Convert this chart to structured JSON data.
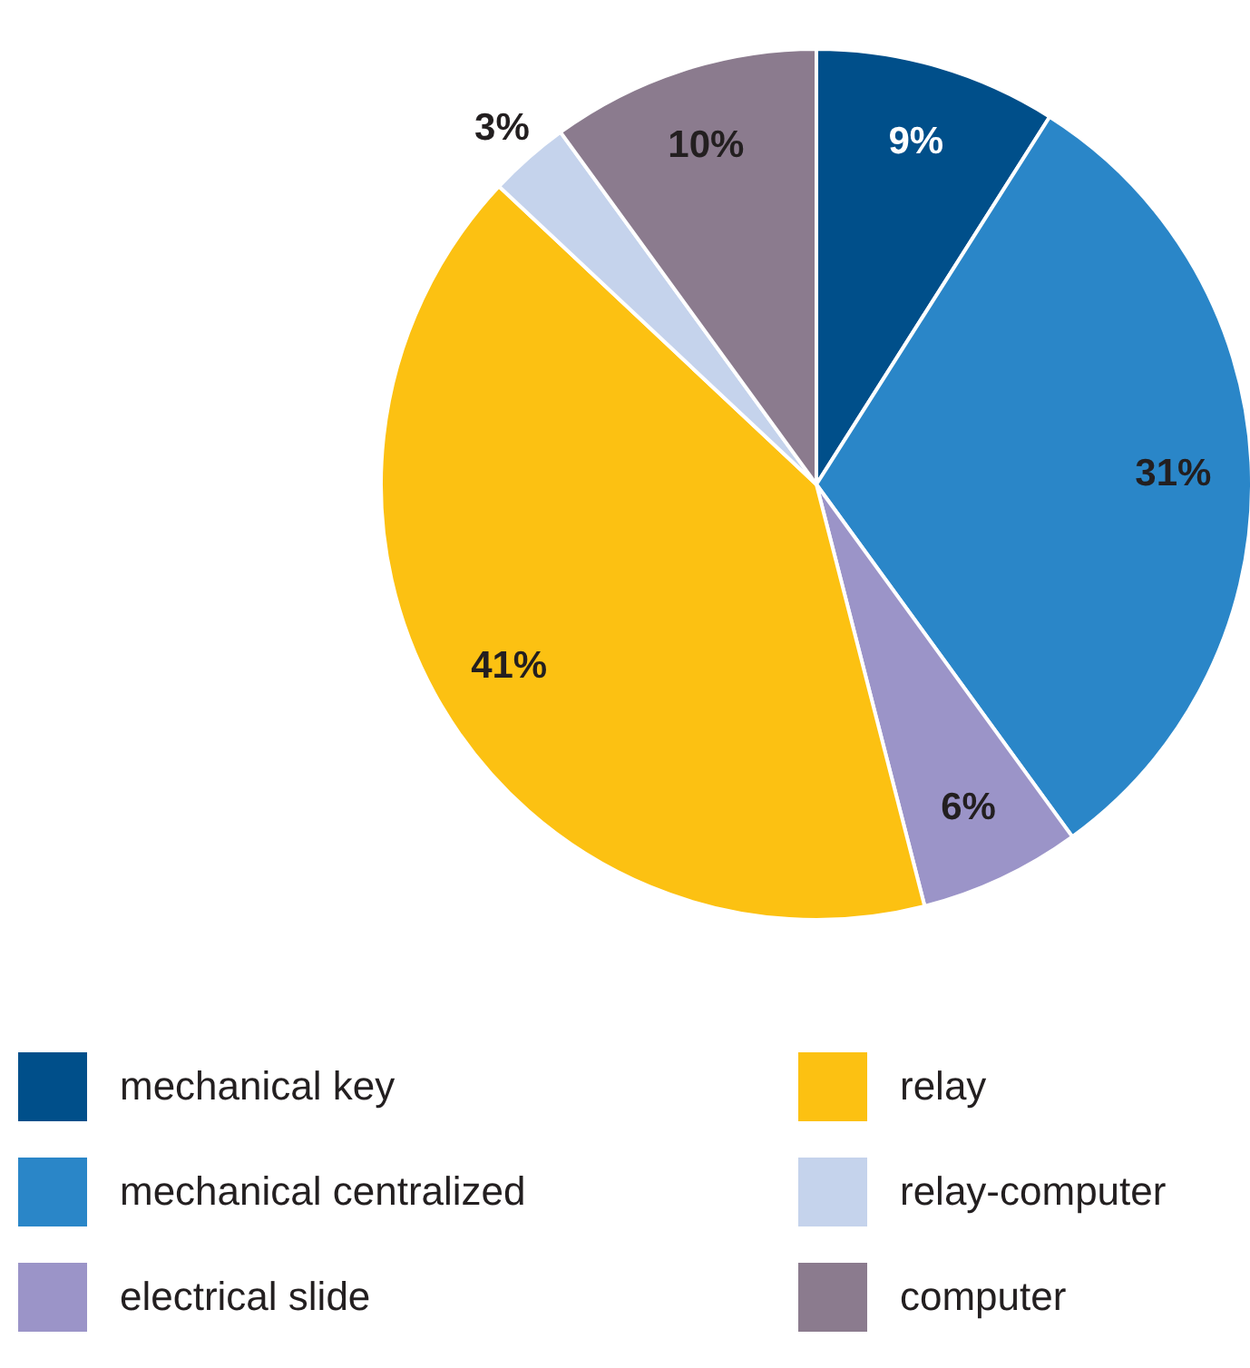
{
  "chart_data": {
    "type": "pie",
    "categories": [
      "mechanical key",
      "mechanical centralized",
      "electrical slide",
      "relay",
      "relay-computer",
      "computer"
    ],
    "values": [
      9,
      31,
      6,
      41,
      3,
      10
    ],
    "colors": [
      "#004f8a",
      "#2a86c8",
      "#9b94c8",
      "#fcc112",
      "#c5d3ec",
      "#8b7b8e"
    ],
    "value_labels": [
      "9%",
      "31%",
      "6%",
      "41%",
      "3%",
      "10%"
    ],
    "legend": "bottom"
  }
}
